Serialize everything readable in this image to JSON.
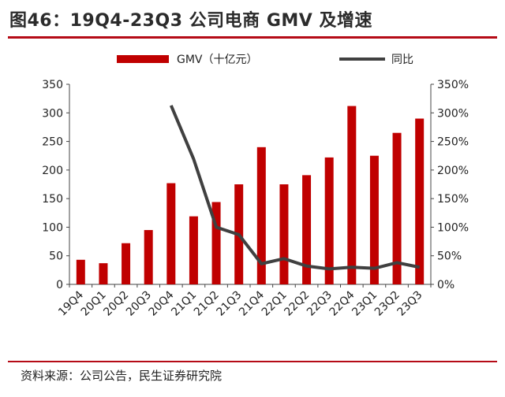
{
  "header": {
    "title": "图46：19Q4-23Q3 公司电商 GMV 及增速"
  },
  "footer": {
    "source": "资料来源：公司公告，民生证券研究院"
  },
  "chart_data": {
    "type": "bar",
    "categories": [
      "19Q4",
      "20Q1",
      "20Q2",
      "20Q3",
      "20Q4",
      "21Q1",
      "21Q2",
      "21Q3",
      "21Q4",
      "22Q1",
      "22Q2",
      "22Q3",
      "22Q4",
      "23Q1",
      "23Q2",
      "23Q3"
    ],
    "series": [
      {
        "name": "GMV（十亿元）",
        "type": "bar",
        "axis": "left",
        "color": "#c00000",
        "values": [
          43,
          37,
          72,
          95,
          177,
          119,
          144,
          175,
          240,
          175,
          191,
          222,
          312,
          225,
          265,
          290
        ]
      },
      {
        "name": "同比",
        "type": "line",
        "axis": "right",
        "color": "#404040",
        "values": [
          null,
          null,
          null,
          null,
          313,
          219,
          100,
          87,
          36,
          45,
          32,
          27,
          30,
          28,
          38,
          30
        ]
      }
    ],
    "left_axis": {
      "ylim": [
        0,
        350
      ],
      "ticks": [
        "0",
        "50",
        "100",
        "150",
        "200",
        "250",
        "300",
        "350"
      ]
    },
    "right_axis": {
      "ylim": [
        0,
        350
      ],
      "ticks": [
        "0%",
        "50%",
        "100%",
        "150%",
        "200%",
        "250%",
        "300%",
        "350%"
      ]
    },
    "legend_position": "top",
    "grid": false
  }
}
